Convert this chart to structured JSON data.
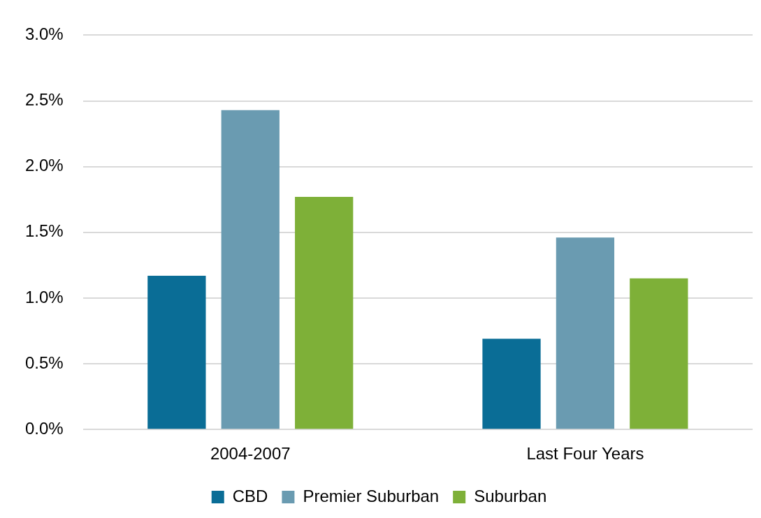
{
  "chart_data": {
    "type": "bar",
    "categories": [
      "2004-2007",
      "Last Four Years"
    ],
    "series": [
      {
        "name": "CBD",
        "color": "#0a6d96",
        "values": [
          1.17,
          0.69
        ]
      },
      {
        "name": "Premier Suburban",
        "color": "#6a9bb1",
        "values": [
          2.43,
          1.46
        ]
      },
      {
        "name": "Suburban",
        "color": "#7eb038",
        "values": [
          1.77,
          1.15
        ]
      }
    ],
    "ylim": [
      0,
      3
    ],
    "yticks": [
      {
        "value": 0,
        "label": "0.0%"
      },
      {
        "value": 0.5,
        "label": "0.5%"
      },
      {
        "value": 1,
        "label": "1.0%"
      },
      {
        "value": 1.5,
        "label": "1.5%"
      },
      {
        "value": 2,
        "label": "2.0%"
      },
      {
        "value": 2.5,
        "label": "2.5%"
      },
      {
        "value": 3,
        "label": "3.0%"
      }
    ],
    "grid": "y",
    "legend": "bottom"
  }
}
